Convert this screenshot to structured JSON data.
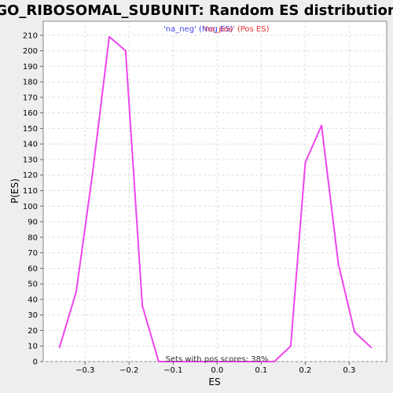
{
  "chart_data": {
    "type": "line",
    "title": "GO_RIBOSOMAL_SUBUNIT: Random ES distribution",
    "xlabel": "ES",
    "ylabel": "P(ES)",
    "xlim": [
      -0.395,
      0.385
    ],
    "ylim": [
      0,
      219
    ],
    "x_ticks": [
      -0.3,
      -0.2,
      -0.1,
      0.0,
      0.1,
      0.2,
      0.3
    ],
    "x_tick_labels": [
      "−0.3",
      "−0.2",
      "−0.1",
      "0.0",
      "0.1",
      "0.2",
      "0.3"
    ],
    "y_ticks": [
      0,
      10,
      20,
      30,
      40,
      50,
      60,
      70,
      80,
      90,
      100,
      110,
      120,
      130,
      140,
      150,
      160,
      170,
      180,
      190,
      200,
      210
    ],
    "grid": true,
    "legend": [
      {
        "label": "'na_neg' (Neg ES)",
        "color": "#4444ee"
      },
      {
        "label": "'na_pos' (Pos ES)",
        "color": "#ee3333"
      }
    ],
    "annotation": "Sets with pos scores: 38%",
    "series": [
      {
        "color": "#ee44ee",
        "x": [
          -0.358,
          -0.32,
          -0.283,
          -0.245,
          -0.208,
          -0.17,
          -0.133,
          -0.095,
          -0.058,
          -0.02,
          0.017,
          0.055,
          0.092,
          0.13,
          0.167,
          0.2,
          0.237,
          0.275,
          0.312,
          0.35
        ],
        "y": [
          9,
          45,
          121,
          209,
          200,
          36,
          0,
          0,
          0,
          0,
          0,
          0,
          0,
          0,
          10,
          128,
          152,
          63,
          19,
          9
        ]
      }
    ]
  }
}
